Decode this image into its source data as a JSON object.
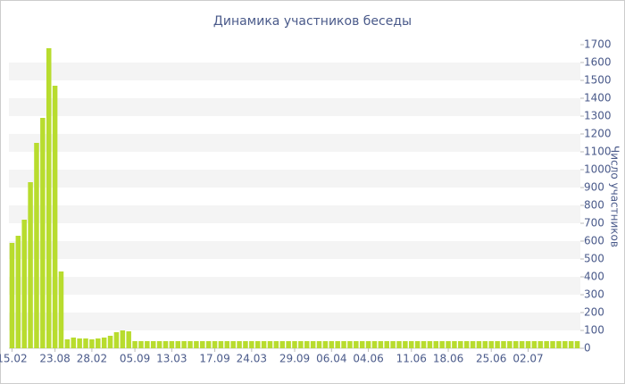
{
  "chart_data": {
    "type": "bar",
    "title": "Динамика участников беседы",
    "y_label": "Число участников",
    "categories": [
      "15.02",
      null,
      null,
      null,
      null,
      null,
      null,
      "23.08",
      null,
      null,
      null,
      null,
      null,
      "28.02",
      null,
      null,
      null,
      null,
      null,
      null,
      "05.09",
      null,
      null,
      null,
      null,
      null,
      "13.03",
      null,
      null,
      null,
      null,
      null,
      null,
      "17.09",
      null,
      null,
      null,
      null,
      null,
      "24.03",
      null,
      null,
      null,
      null,
      null,
      null,
      "29.09",
      null,
      null,
      null,
      null,
      null,
      "06.04",
      null,
      null,
      null,
      null,
      null,
      "04.06",
      null,
      null,
      null,
      null,
      null,
      null,
      "11.06",
      null,
      null,
      null,
      null,
      null,
      "18.06",
      null,
      null,
      null,
      null,
      null,
      null,
      "25.06",
      null,
      null,
      null,
      null,
      null,
      "02.07",
      null,
      null,
      null,
      null,
      null,
      null,
      null,
      null
    ],
    "values": [
      590,
      630,
      720,
      930,
      1150,
      1290,
      1680,
      1470,
      430,
      50,
      60,
      55,
      55,
      50,
      55,
      60,
      70,
      90,
      100,
      95,
      40,
      40,
      40,
      40,
      40,
      40,
      40,
      40,
      40,
      40,
      40,
      40,
      40,
      40,
      40,
      40,
      40,
      40,
      40,
      40,
      40,
      40,
      40,
      40,
      40,
      40,
      40,
      40,
      40,
      40,
      40,
      40,
      40,
      40,
      40,
      40,
      40,
      40,
      40,
      40,
      40,
      40,
      40,
      40,
      40,
      40,
      40,
      40,
      40,
      40,
      40,
      40,
      40,
      40,
      40,
      40,
      40,
      40,
      40,
      40,
      40,
      40,
      40,
      40,
      40,
      40,
      40,
      40,
      40,
      40,
      40,
      40,
      40
    ],
    "color": "#b8dc2e",
    "ylim": [
      0,
      1700
    ],
    "yticks": [
      0,
      100,
      200,
      300,
      400,
      500,
      600,
      700,
      800,
      900,
      1000,
      1100,
      1200,
      1300,
      1400,
      1500,
      1600,
      1700
    ],
    "grid": true
  }
}
